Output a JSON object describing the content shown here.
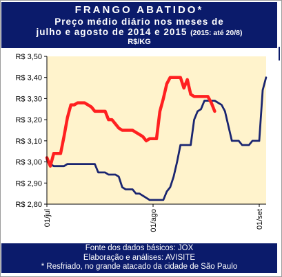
{
  "header": {
    "title": "FRANGO ABATIDO*",
    "line2": "Preço médio diário nos meses de",
    "line3_main": "julho e agosto de 2014 e 2015",
    "line3_note": "(2015: até 20/8)",
    "unit": "R$/KG"
  },
  "footer": {
    "line1": "Fonte dos dados básicos: JOX",
    "line2": "Elaboração e análises: AVISITE",
    "line3": "* Resfriado, no grande atacado da cidade de São Paulo"
  },
  "chart_data": {
    "type": "line",
    "ylim": [
      2.8,
      3.5
    ],
    "xlim": [
      0,
      62
    ],
    "y_ticks": [
      {
        "value": 2.8,
        "label": "R$ 2,80"
      },
      {
        "value": 2.9,
        "label": "R$ 2,90"
      },
      {
        "value": 3.0,
        "label": "R$ 3,00"
      },
      {
        "value": 3.1,
        "label": "R$ 3,10"
      },
      {
        "value": 3.2,
        "label": "R$ 3,20"
      },
      {
        "value": 3.3,
        "label": "R$ 3,30"
      },
      {
        "value": 3.4,
        "label": "R$ 3,40"
      },
      {
        "value": 3.5,
        "label": "R$ 3,50"
      }
    ],
    "x_ticks": [
      {
        "value": 0,
        "label": "01/jul"
      },
      {
        "value": 31,
        "label": "01/ago"
      },
      {
        "value": 62,
        "label": "01/set"
      }
    ],
    "grid": false,
    "legend": "none",
    "plot_background": "#fff3cc",
    "series": [
      {
        "color": "#1a2570",
        "points": [
          [
            0,
            3.01
          ],
          [
            1,
            2.99
          ],
          [
            2,
            2.98
          ],
          [
            3,
            2.98
          ],
          [
            4,
            2.98
          ],
          [
            5,
            2.98
          ],
          [
            6,
            2.99
          ],
          [
            7,
            2.99
          ],
          [
            8,
            2.99
          ],
          [
            9,
            2.99
          ],
          [
            10,
            2.99
          ],
          [
            11,
            2.99
          ],
          [
            12,
            2.99
          ],
          [
            13,
            2.99
          ],
          [
            14,
            2.99
          ],
          [
            15,
            2.95
          ],
          [
            16,
            2.95
          ],
          [
            17,
            2.95
          ],
          [
            18,
            2.94
          ],
          [
            19,
            2.94
          ],
          [
            20,
            2.94
          ],
          [
            21,
            2.93
          ],
          [
            22,
            2.88
          ],
          [
            23,
            2.87
          ],
          [
            24,
            2.87
          ],
          [
            25,
            2.87
          ],
          [
            26,
            2.85
          ],
          [
            27,
            2.85
          ],
          [
            28,
            2.84
          ],
          [
            29,
            2.83
          ],
          [
            30,
            2.82
          ],
          [
            31,
            2.82
          ],
          [
            32,
            2.82
          ],
          [
            33,
            2.82
          ],
          [
            34,
            2.82
          ],
          [
            35,
            2.86
          ],
          [
            36,
            2.88
          ],
          [
            37,
            2.93
          ],
          [
            38,
            3.0
          ],
          [
            39,
            3.08
          ],
          [
            40,
            3.08
          ],
          [
            41,
            3.08
          ],
          [
            42,
            3.08
          ],
          [
            43,
            3.2
          ],
          [
            44,
            3.24
          ],
          [
            45,
            3.25
          ],
          [
            46,
            3.29
          ],
          [
            47,
            3.29
          ],
          [
            48,
            3.29
          ],
          [
            49,
            3.29
          ],
          [
            50,
            3.28
          ],
          [
            51,
            3.27
          ],
          [
            52,
            3.24
          ],
          [
            53,
            3.17
          ],
          [
            54,
            3.1
          ],
          [
            55,
            3.1
          ],
          [
            56,
            3.1
          ],
          [
            57,
            3.08
          ],
          [
            58,
            3.08
          ],
          [
            59,
            3.08
          ],
          [
            60,
            3.1
          ],
          [
            61,
            3.1
          ],
          [
            62,
            3.1
          ],
          [
            63,
            3.34
          ],
          [
            64,
            3.4
          ]
        ]
      },
      {
        "color": "#ff2020",
        "points": [
          [
            0,
            3.02
          ],
          [
            1,
            2.98
          ],
          [
            2,
            3.04
          ],
          [
            3,
            3.04
          ],
          [
            4,
            3.04
          ],
          [
            5,
            3.12
          ],
          [
            6,
            3.21
          ],
          [
            7,
            3.27
          ],
          [
            8,
            3.27
          ],
          [
            9,
            3.28
          ],
          [
            10,
            3.28
          ],
          [
            11,
            3.28
          ],
          [
            12,
            3.27
          ],
          [
            13,
            3.26
          ],
          [
            14,
            3.24
          ],
          [
            15,
            3.24
          ],
          [
            16,
            3.24
          ],
          [
            17,
            3.24
          ],
          [
            18,
            3.2
          ],
          [
            19,
            3.2
          ],
          [
            20,
            3.18
          ],
          [
            21,
            3.16
          ],
          [
            22,
            3.15
          ],
          [
            23,
            3.15
          ],
          [
            24,
            3.15
          ],
          [
            25,
            3.15
          ],
          [
            26,
            3.14
          ],
          [
            27,
            3.13
          ],
          [
            28,
            3.12
          ],
          [
            29,
            3.1
          ],
          [
            30,
            3.11
          ],
          [
            31,
            3.11
          ],
          [
            32,
            3.11
          ],
          [
            33,
            3.24
          ],
          [
            34,
            3.3
          ],
          [
            35,
            3.37
          ],
          [
            36,
            3.4
          ],
          [
            37,
            3.4
          ],
          [
            38,
            3.4
          ],
          [
            39,
            3.4
          ],
          [
            40,
            3.35
          ],
          [
            41,
            3.39
          ],
          [
            42,
            3.32
          ],
          [
            43,
            3.31
          ],
          [
            44,
            3.31
          ],
          [
            45,
            3.31
          ],
          [
            46,
            3.31
          ],
          [
            47,
            3.31
          ],
          [
            48,
            3.28
          ],
          [
            49,
            3.24
          ]
        ]
      }
    ]
  }
}
